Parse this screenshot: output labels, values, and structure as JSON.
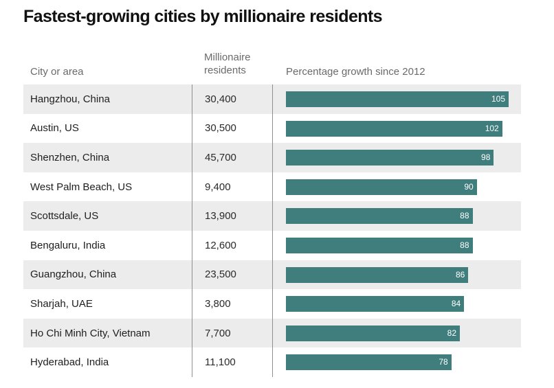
{
  "chart_data": {
    "type": "bar",
    "orientation": "horizontal",
    "title": "Fastest-growing cities by millionaire residents",
    "columns": {
      "city": "City or area",
      "millionaires": "Millionaire residents",
      "growth": "Percentage growth since 2012"
    },
    "rows": [
      {
        "city": "Hangzhou, China",
        "millionaires": "30,400",
        "growth": 105
      },
      {
        "city": "Austin, US",
        "millionaires": "30,500",
        "growth": 102
      },
      {
        "city": "Shenzhen, China",
        "millionaires": "45,700",
        "growth": 98
      },
      {
        "city": "West Palm Beach, US",
        "millionaires": "9,400",
        "growth": 90
      },
      {
        "city": "Scottsdale, US",
        "millionaires": "13,900",
        "growth": 88
      },
      {
        "city": "Bengaluru, India",
        "millionaires": "12,600",
        "growth": 88
      },
      {
        "city": "Guangzhou, China",
        "millionaires": "23,500",
        "growth": 86
      },
      {
        "city": "Sharjah, UAE",
        "millionaires": "3,800",
        "growth": 84
      },
      {
        "city": "Ho Chi Minh City, Vietnam",
        "millionaires": "7,700",
        "growth": 82
      },
      {
        "city": "Hyderabad, India",
        "millionaires": "11,100",
        "growth": 78
      }
    ],
    "xlim": [
      0,
      105
    ],
    "bar_color": "#3f7e7d",
    "stripe_color": "#ececec"
  }
}
